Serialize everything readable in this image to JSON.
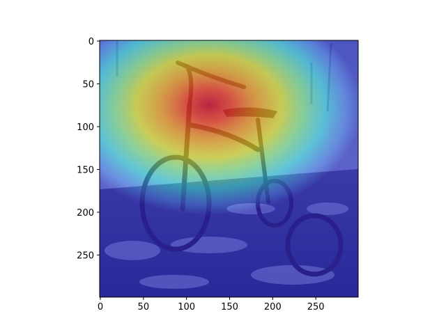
{
  "chart_data": {
    "type": "heatmap",
    "title": "",
    "xlabel": "",
    "ylabel": "",
    "xlim": [
      0,
      300
    ],
    "ylim": [
      300,
      0
    ],
    "x_ticks": [
      0,
      50,
      100,
      150,
      200,
      250
    ],
    "y_ticks": [
      0,
      50,
      100,
      150,
      200,
      250
    ],
    "x_tick_labels": [
      "0",
      "50",
      "100",
      "150",
      "200",
      "250"
    ],
    "y_tick_labels": [
      "0",
      "50",
      "100",
      "150",
      "200",
      "250"
    ],
    "image_content": "tricycle in snow with attention heatmap overlay",
    "colormap": "jet",
    "heatmap_peak": [
      95,
      80
    ],
    "heatmap_spread": [
      115,
      95
    ],
    "grid": false
  }
}
